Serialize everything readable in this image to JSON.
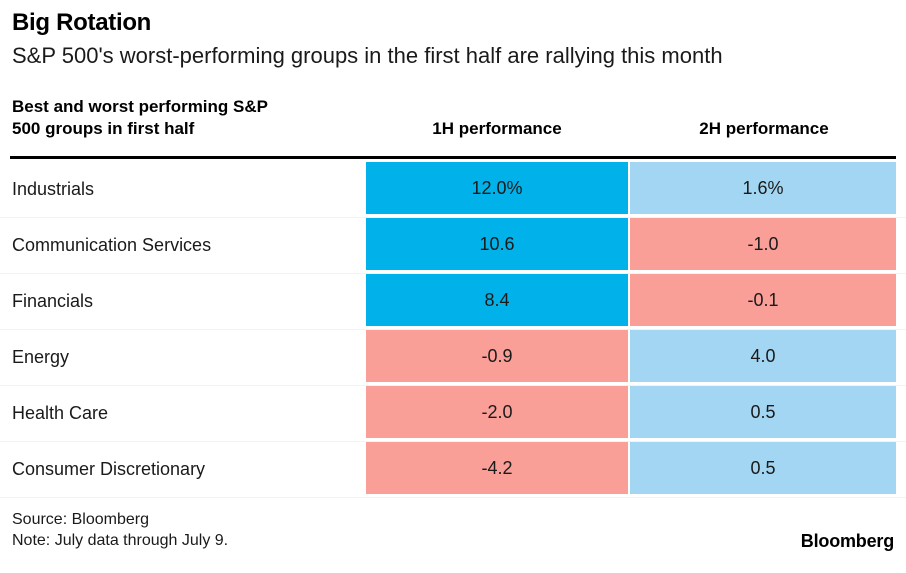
{
  "title": "Big Rotation",
  "subtitle": "S&P 500's worst-performing groups in the first half are rallying this month",
  "table": {
    "left_header_line1": "Best and worst performing S&P",
    "left_header_line2": "500 groups in first half",
    "col_1h_label": "1H performance",
    "col_2h_label": "2H performance",
    "rows": [
      {
        "label": "Industrials",
        "h1": "12.0%",
        "h1_bg": "#00b2e9",
        "h2": "1.6%",
        "h2_bg": "#a2d6f2"
      },
      {
        "label": "Communication Services",
        "h1": "10.6",
        "h1_bg": "#00b2e9",
        "h2": "-1.0",
        "h2_bg": "#fa9e98"
      },
      {
        "label": "Financials",
        "h1": "8.4",
        "h1_bg": "#00b2e9",
        "h2": "-0.1",
        "h2_bg": "#fa9e98"
      },
      {
        "label": "Energy",
        "h1": "-0.9",
        "h1_bg": "#fa9e98",
        "h2": "4.0",
        "h2_bg": "#a2d6f2"
      },
      {
        "label": "Health Care",
        "h1": "-2.0",
        "h1_bg": "#fa9e98",
        "h2": "0.5",
        "h2_bg": "#a2d6f2"
      },
      {
        "label": "Consumer Discretionary",
        "h1": "-4.2",
        "h1_bg": "#fa9e98",
        "h2": "0.5",
        "h2_bg": "#a2d6f2"
      }
    ]
  },
  "footer": {
    "source": "Source: Bloomberg",
    "note": "Note: July data through July 9.",
    "logo": "Bloomberg"
  },
  "colors": {
    "strong_blue": "#00b2e9",
    "light_blue": "#a2d6f2",
    "pink": "#fa9e98",
    "rule": "#000000",
    "text": "#1a1a1a",
    "hairline": "#f3f3f3"
  },
  "chart_data": {
    "type": "table",
    "title": "Big Rotation",
    "subtitle": "S&P 500's worst-performing groups in the first half are rallying this month",
    "row_header": "Best and worst performing S&P 500 groups in first half",
    "categories": [
      "Industrials",
      "Communication Services",
      "Financials",
      "Energy",
      "Health Care",
      "Consumer Discretionary"
    ],
    "series": [
      {
        "name": "1H performance",
        "values": [
          12.0,
          10.6,
          8.4,
          -0.9,
          -2.0,
          -4.2
        ]
      },
      {
        "name": "2H performance",
        "values": [
          1.6,
          -1.0,
          -0.1,
          4.0,
          0.5,
          0.5
        ]
      }
    ],
    "units": "percent",
    "cell_color_rule": "strong blue = top 1H gainers, light blue = positive, pink = negative",
    "source": "Source: Bloomberg",
    "note": "Note: July data through July 9."
  }
}
